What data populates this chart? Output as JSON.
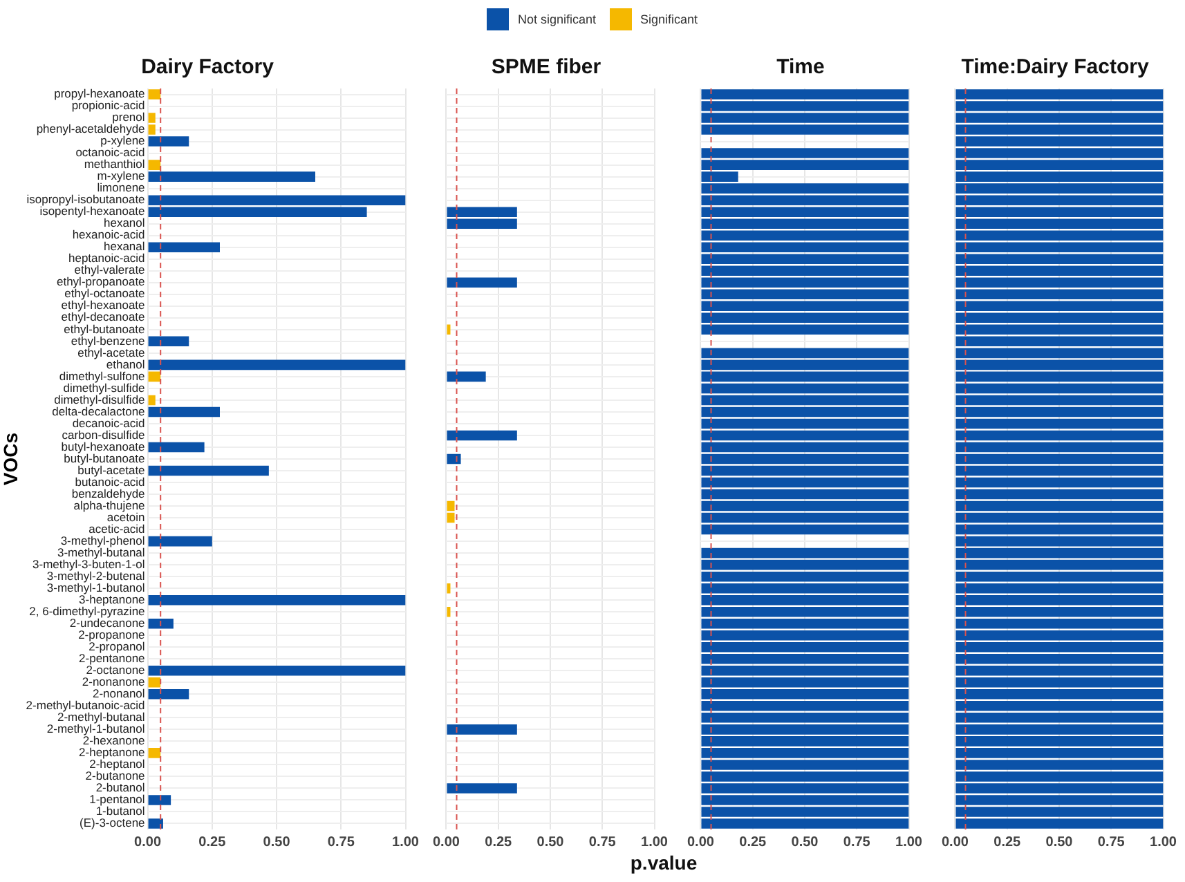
{
  "chart_data": [
    {
      "type": "bar",
      "orientation": "horizontal",
      "stacked": true,
      "title": "Dairy Factory",
      "ylabel": "VOCs",
      "legend": "top",
      "grid": true,
      "categories": [
        "propyl-hexanoate",
        "propionic-acid",
        "prenol",
        "phenyl-acetaldehyde",
        "p-xylene",
        "octanoic-acid",
        "methanthiol",
        "m-xylene",
        "limonene",
        "isopropyl-isobutanoate",
        "isopentyl-hexanoate",
        "hexanol",
        "hexanoic-acid",
        "hexanal",
        "heptanoic-acid",
        "ethyl-valerate",
        "ethyl-propanoate",
        "ethyl-octanoate",
        "ethyl-hexanoate",
        "ethyl-decanoate",
        "ethyl-butanoate",
        "ethyl-benzene",
        "ethyl-acetate",
        "ethanol",
        "dimethyl-sulfone",
        "dimethyl-sulfide",
        "dimethyl-disulfide",
        "delta-decalactone",
        "decanoic-acid",
        "carbon-disulfide",
        "butyl-hexanoate",
        "butyl-butanoate",
        "butyl-acetate",
        "butanoic-acid",
        "benzaldehyde",
        "alpha-thujene",
        "acetoin",
        "acetic-acid",
        "3-methyl-phenol",
        "3-methyl-butanal",
        "3-methyl-3-buten-1-ol",
        "3-methyl-2-butenal",
        "3-methyl-1-butanol",
        "3-heptanone",
        "2, 6-dimethyl-pyrazine",
        "2-undecanone",
        "2-propanone",
        "2-propanol",
        "2-pentanone",
        "2-octanone",
        "2-nonanone",
        "2-nonanol",
        "2-methyl-butanoic-acid",
        "2-methyl-butanal",
        "2-methyl-1-butanol",
        "2-hexanone",
        "2-heptanone",
        "2-heptanol",
        "2-butanone",
        "2-butanol",
        "1-pentanol",
        "1-butanol",
        "(E)-3-octene"
      ],
      "series": [
        {
          "name": "Not significant",
          "color": "#0b52a8",
          "values": [
            null,
            null,
            null,
            null,
            0.16,
            null,
            null,
            0.65,
            null,
            1.0,
            0.85,
            null,
            null,
            0.28,
            null,
            null,
            null,
            null,
            null,
            null,
            null,
            0.16,
            null,
            1.0,
            null,
            null,
            null,
            0.28,
            null,
            null,
            0.22,
            null,
            0.47,
            null,
            null,
            null,
            null,
            null,
            0.25,
            null,
            null,
            null,
            null,
            1.0,
            null,
            0.1,
            null,
            null,
            null,
            1.0,
            null,
            0.16,
            null,
            null,
            null,
            null,
            null,
            null,
            null,
            null,
            0.09,
            null,
            0.06
          ]
        },
        {
          "name": "Significant",
          "color": "#f5b800",
          "values": [
            0.05,
            0,
            0.03,
            0.03,
            null,
            0,
            0.05,
            null,
            0,
            null,
            null,
            0,
            0,
            null,
            0,
            0,
            0,
            0,
            0,
            0,
            0,
            null,
            0,
            null,
            0.05,
            0,
            0.03,
            null,
            0,
            0,
            null,
            0,
            null,
            0,
            0,
            0,
            0,
            0,
            null,
            0,
            0,
            0,
            0,
            null,
            0,
            null,
            0,
            0,
            0,
            null,
            0.05,
            null,
            0,
            0,
            0,
            0,
            0.05,
            0,
            0,
            0,
            null,
            0,
            null
          ]
        }
      ],
      "xlim": [
        0,
        1
      ],
      "xticks": [
        {
          "value": 0,
          "label": "0.00"
        },
        {
          "value": 0.25,
          "label": "0.25"
        },
        {
          "value": 0.5,
          "label": "0.50"
        },
        {
          "value": 0.75,
          "label": "0.75"
        },
        {
          "value": 1,
          "label": "1.00"
        }
      ],
      "ref_lines": [
        {
          "axis": "x",
          "value": 0.05,
          "color": "#d9534f",
          "line_style": "dashed"
        }
      ]
    },
    {
      "type": "bar",
      "orientation": "horizontal",
      "stacked": true,
      "title": "SPME fiber",
      "xlabel": "p.value",
      "grid": true,
      "tick_labels": "x",
      "categories": [
        null,
        null,
        null,
        null,
        null,
        null,
        null,
        null,
        null,
        null,
        null,
        null,
        null,
        null,
        null,
        null,
        null,
        null,
        null,
        null,
        null,
        null,
        null,
        null,
        null,
        null,
        null,
        null,
        null,
        null,
        null,
        null,
        null,
        null,
        null,
        null,
        null,
        null,
        null,
        null,
        null,
        null,
        null,
        null,
        null,
        null,
        null,
        null,
        null,
        null,
        null,
        null,
        null,
        null,
        null,
        null,
        null,
        null,
        null,
        null,
        null,
        null,
        null
      ],
      "series": [
        {
          "color": "#0b52a8",
          "values": [
            null,
            null,
            null,
            null,
            null,
            null,
            null,
            null,
            null,
            null,
            0.34,
            0.34,
            null,
            null,
            null,
            null,
            0.34,
            null,
            null,
            null,
            null,
            null,
            null,
            null,
            0.19,
            null,
            null,
            null,
            null,
            0.34,
            null,
            0.07,
            null,
            null,
            null,
            null,
            null,
            null,
            null,
            null,
            null,
            null,
            null,
            null,
            null,
            null,
            null,
            null,
            null,
            null,
            null,
            null,
            null,
            null,
            0.34,
            null,
            null,
            null,
            null,
            0.34,
            null,
            null,
            null
          ]
        },
        {
          "color": "#f5b800",
          "values": [
            0,
            0,
            0,
            0,
            0,
            0,
            0,
            0,
            0,
            0,
            null,
            null,
            0,
            0,
            0,
            0,
            null,
            0,
            0,
            0,
            0.02,
            0,
            0,
            0,
            null,
            0,
            0,
            0,
            0,
            null,
            0,
            null,
            0,
            0,
            0,
            0.04,
            0.04,
            0,
            0,
            0,
            0,
            0,
            0.02,
            0,
            0.02,
            0,
            0,
            0,
            0,
            0,
            0,
            0,
            0,
            0,
            null,
            0,
            0,
            0,
            0,
            null,
            0,
            0,
            0
          ]
        }
      ],
      "xlim": [
        0,
        1
      ],
      "xticks": [
        {
          "value": 0,
          "label": "0.00"
        },
        {
          "value": 0.25,
          "label": "0.25"
        },
        {
          "value": 0.5,
          "label": "0.50"
        },
        {
          "value": 0.75,
          "label": "0.75"
        },
        {
          "value": 1,
          "label": "1.00"
        }
      ],
      "ref_lines": [
        {
          "axis": "x",
          "value": 0.05,
          "color": "#d9534f",
          "line_style": "dashed"
        }
      ]
    },
    {
      "type": "bar",
      "orientation": "horizontal",
      "stacked": true,
      "title": "Time",
      "grid": true,
      "tick_labels": "x",
      "categories": [
        null,
        null,
        null,
        null,
        null,
        null,
        null,
        null,
        null,
        null,
        null,
        null,
        null,
        null,
        null,
        null,
        null,
        null,
        null,
        null,
        null,
        null,
        null,
        null,
        null,
        null,
        null,
        null,
        null,
        null,
        null,
        null,
        null,
        null,
        null,
        null,
        null,
        null,
        null,
        null,
        null,
        null,
        null,
        null,
        null,
        null,
        null,
        null,
        null,
        null,
        null,
        null,
        null,
        null,
        null,
        null,
        null,
        null,
        null,
        null,
        null,
        null,
        null
      ],
      "series": [
        {
          "color": "#0b52a8",
          "values": [
            1.0,
            1.0,
            1.0,
            1.0,
            null,
            1.0,
            1.0,
            0.18,
            1.0,
            1.0,
            1.0,
            1.0,
            1.0,
            1.0,
            1.0,
            1.0,
            1.0,
            1.0,
            1.0,
            1.0,
            1.0,
            null,
            1.0,
            1.0,
            1.0,
            1.0,
            1.0,
            1.0,
            1.0,
            1.0,
            1.0,
            1.0,
            1.0,
            1.0,
            1.0,
            1.0,
            1.0,
            1.0,
            null,
            1.0,
            1.0,
            1.0,
            1.0,
            1.0,
            1.0,
            1.0,
            1.0,
            1.0,
            1.0,
            1.0,
            1.0,
            1.0,
            1.0,
            1.0,
            1.0,
            1.0,
            1.0,
            1.0,
            1.0,
            1.0,
            1.0,
            1.0,
            1.0
          ]
        },
        {
          "color": "#f5b800",
          "values": [
            null,
            null,
            null,
            null,
            0,
            null,
            null,
            null,
            null,
            null,
            null,
            null,
            null,
            null,
            null,
            null,
            null,
            null,
            null,
            null,
            null,
            0,
            null,
            null,
            null,
            null,
            null,
            null,
            null,
            null,
            null,
            null,
            null,
            null,
            null,
            null,
            null,
            null,
            0,
            null,
            null,
            null,
            null,
            null,
            null,
            null,
            null,
            null,
            null,
            null,
            null,
            null,
            null,
            null,
            null,
            null,
            null,
            null,
            null,
            null,
            null,
            null,
            null
          ]
        }
      ],
      "xlim": [
        0,
        1
      ],
      "xticks": [
        {
          "value": 0,
          "label": "0.00"
        },
        {
          "value": 0.25,
          "label": "0.25"
        },
        {
          "value": 0.5,
          "label": "0.50"
        },
        {
          "value": 0.75,
          "label": "0.75"
        },
        {
          "value": 1,
          "label": "1.00"
        }
      ],
      "ref_lines": [
        {
          "axis": "x",
          "value": 0.05,
          "color": "#d9534f",
          "line_style": "dashed"
        }
      ]
    },
    {
      "type": "bar",
      "orientation": "horizontal",
      "stacked": true,
      "title": "Time:Dairy Factory",
      "grid": true,
      "tick_labels": "x",
      "categories": [
        null,
        null,
        null,
        null,
        null,
        null,
        null,
        null,
        null,
        null,
        null,
        null,
        null,
        null,
        null,
        null,
        null,
        null,
        null,
        null,
        null,
        null,
        null,
        null,
        null,
        null,
        null,
        null,
        null,
        null,
        null,
        null,
        null,
        null,
        null,
        null,
        null,
        null,
        null,
        null,
        null,
        null,
        null,
        null,
        null,
        null,
        null,
        null,
        null,
        null,
        null,
        null,
        null,
        null,
        null,
        null,
        null,
        null,
        null,
        null,
        null,
        null,
        null
      ],
      "series": [
        {
          "color": "#0b52a8",
          "values": [
            1.0,
            1.0,
            1.0,
            1.0,
            1.0,
            1.0,
            1.0,
            1.0,
            1.0,
            1.0,
            1.0,
            1.0,
            1.0,
            1.0,
            1.0,
            1.0,
            1.0,
            1.0,
            1.0,
            1.0,
            1.0,
            1.0,
            1.0,
            1.0,
            1.0,
            1.0,
            1.0,
            1.0,
            1.0,
            1.0,
            1.0,
            1.0,
            1.0,
            1.0,
            1.0,
            1.0,
            1.0,
            1.0,
            1.0,
            1.0,
            1.0,
            1.0,
            1.0,
            1.0,
            1.0,
            1.0,
            1.0,
            1.0,
            1.0,
            1.0,
            1.0,
            1.0,
            1.0,
            1.0,
            1.0,
            1.0,
            1.0,
            1.0,
            1.0,
            1.0,
            1.0,
            1.0,
            1.0
          ]
        }
      ],
      "xlim": [
        0,
        1
      ],
      "xticks": [
        {
          "value": 0,
          "label": "0.00"
        },
        {
          "value": 0.25,
          "label": "0.25"
        },
        {
          "value": 0.5,
          "label": "0.50"
        },
        {
          "value": 0.75,
          "label": "0.75"
        },
        {
          "value": 1,
          "label": "1.00"
        }
      ],
      "ref_lines": [
        {
          "axis": "x",
          "value": 0.05,
          "color": "#d9534f",
          "line_style": "dashed"
        }
      ]
    }
  ]
}
